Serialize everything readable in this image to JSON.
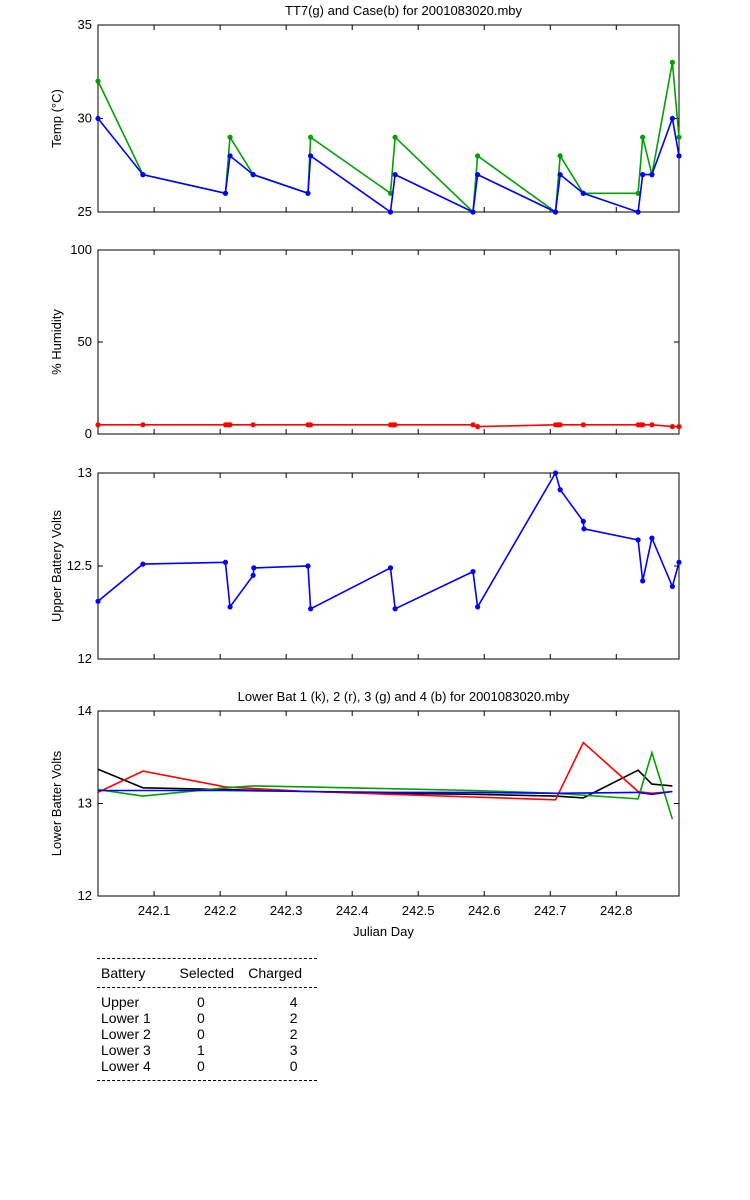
{
  "chart_data": [
    {
      "type": "line",
      "title": "TT7(g) and Case(b) for 2001083020.mby",
      "ylabel": "Temp  (°C)",
      "xlim": [
        242.015,
        242.895
      ],
      "ylim": [
        25,
        35
      ],
      "yticks": [
        25,
        30,
        35
      ],
      "grid": false,
      "series": [
        {
          "name": "TT7",
          "color": "#00a000",
          "markers": true,
          "x": [
            242.015,
            242.083,
            242.208,
            242.215,
            242.25,
            242.333,
            242.337,
            242.458,
            242.465,
            242.583,
            242.59,
            242.708,
            242.715,
            242.75,
            242.833,
            242.84,
            242.854,
            242.885,
            242.895
          ],
          "y": [
            32,
            27,
            26,
            29,
            27,
            26,
            29,
            26,
            29,
            25,
            28,
            25,
            28,
            26,
            26,
            29,
            27,
            33,
            29
          ]
        },
        {
          "name": "Case",
          "color": "#0000ff",
          "markers": true,
          "x": [
            242.015,
            242.083,
            242.208,
            242.215,
            242.25,
            242.333,
            242.337,
            242.458,
            242.465,
            242.583,
            242.59,
            242.708,
            242.715,
            242.75,
            242.833,
            242.84,
            242.854,
            242.885,
            242.895
          ],
          "y": [
            30,
            27,
            26,
            28,
            27,
            26,
            28,
            25,
            27,
            25,
            27,
            25,
            27,
            26,
            25,
            27,
            27,
            30,
            28
          ]
        }
      ]
    },
    {
      "type": "line",
      "title": "",
      "ylabel": "% Humidity",
      "xlim": [
        242.015,
        242.895
      ],
      "ylim": [
        0,
        100
      ],
      "yticks": [
        0,
        50,
        100
      ],
      "grid": false,
      "series": [
        {
          "name": "Humidity",
          "color": "#ff0000",
          "markers": true,
          "x": [
            242.015,
            242.083,
            242.208,
            242.212,
            242.215,
            242.25,
            242.333,
            242.337,
            242.458,
            242.462,
            242.465,
            242.583,
            242.59,
            242.708,
            242.712,
            242.715,
            242.75,
            242.833,
            242.837,
            242.84,
            242.854,
            242.885,
            242.895
          ],
          "y": [
            5,
            5,
            5,
            5,
            5,
            5,
            5,
            5,
            5,
            5,
            5,
            5,
            4,
            5,
            5,
            5,
            5,
            5,
            5,
            5,
            5,
            4,
            4
          ]
        }
      ]
    },
    {
      "type": "line",
      "title": "",
      "ylabel": "Upper Battery Volts",
      "xlim": [
        242.015,
        242.895
      ],
      "ylim": [
        12,
        13
      ],
      "yticks": [
        12,
        12.5,
        13
      ],
      "grid": false,
      "series": [
        {
          "name": "Upper",
          "color": "#0000ff",
          "markers": true,
          "x": [
            242.015,
            242.083,
            242.208,
            242.215,
            242.25,
            242.251,
            242.333,
            242.337,
            242.458,
            242.465,
            242.583,
            242.59,
            242.708,
            242.715,
            242.75,
            242.751,
            242.833,
            242.84,
            242.854,
            242.885,
            242.895
          ],
          "y": [
            12.31,
            12.51,
            12.52,
            12.28,
            12.45,
            12.49,
            12.5,
            12.27,
            12.49,
            12.27,
            12.47,
            12.28,
            13.0,
            12.91,
            12.74,
            12.7,
            12.64,
            12.42,
            12.65,
            12.39,
            12.52
          ]
        }
      ]
    },
    {
      "type": "line",
      "title": "Lower Bat 1 (k), 2 (r), 3 (g) and 4 (b) for 2001083020.mby",
      "xlabel": "Julian Day",
      "ylabel": "Lower Batter Volts",
      "xlim": [
        242.015,
        242.895
      ],
      "ylim": [
        12,
        14
      ],
      "yticks": [
        12,
        13,
        14
      ],
      "xticks": [
        242.1,
        242.2,
        242.3,
        242.4,
        242.5,
        242.6,
        242.7,
        242.8
      ],
      "grid": false,
      "series": [
        {
          "name": "Lower Bat 1",
          "color": "#000000",
          "markers": false,
          "x": [
            242.015,
            242.083,
            242.208,
            242.333,
            242.458,
            242.583,
            242.708,
            242.75,
            242.833,
            242.854,
            242.885
          ],
          "y": [
            13.37,
            13.17,
            13.15,
            13.13,
            13.11,
            13.1,
            13.08,
            13.06,
            13.36,
            13.21,
            13.19
          ]
        },
        {
          "name": "Lower Bat 2",
          "color": "#ff0000",
          "markers": false,
          "x": [
            242.015,
            242.083,
            242.208,
            242.333,
            242.458,
            242.583,
            242.708,
            242.75,
            242.833,
            242.854,
            242.885
          ],
          "y": [
            13.12,
            13.35,
            13.18,
            13.13,
            13.1,
            13.07,
            13.04,
            13.66,
            13.13,
            13.11,
            13.13
          ]
        },
        {
          "name": "Lower Bat 3",
          "color": "#00a000",
          "markers": false,
          "x": [
            242.015,
            242.083,
            242.208,
            242.25,
            242.333,
            242.458,
            242.583,
            242.708,
            242.833,
            242.854,
            242.885
          ],
          "y": [
            13.15,
            13.08,
            13.17,
            13.19,
            13.18,
            13.16,
            13.14,
            13.11,
            13.05,
            13.55,
            12.83
          ]
        },
        {
          "name": "Lower Bat 4",
          "color": "#0000ff",
          "markers": false,
          "x": [
            242.015,
            242.083,
            242.208,
            242.333,
            242.458,
            242.583,
            242.708,
            242.833,
            242.854,
            242.885
          ],
          "y": [
            13.14,
            13.14,
            13.14,
            13.13,
            13.12,
            13.12,
            13.11,
            13.12,
            13.1,
            13.13
          ]
        }
      ]
    }
  ],
  "battery_table": {
    "headers": [
      "Battery",
      "Selected",
      "Charged"
    ],
    "rows": [
      [
        "Upper",
        "0",
        "4"
      ],
      [
        "Lower 1",
        "0",
        "2"
      ],
      [
        "Lower 2",
        "0",
        "2"
      ],
      [
        "Lower 3",
        "1",
        "3"
      ],
      [
        "Lower 4",
        "0",
        "0"
      ]
    ]
  }
}
